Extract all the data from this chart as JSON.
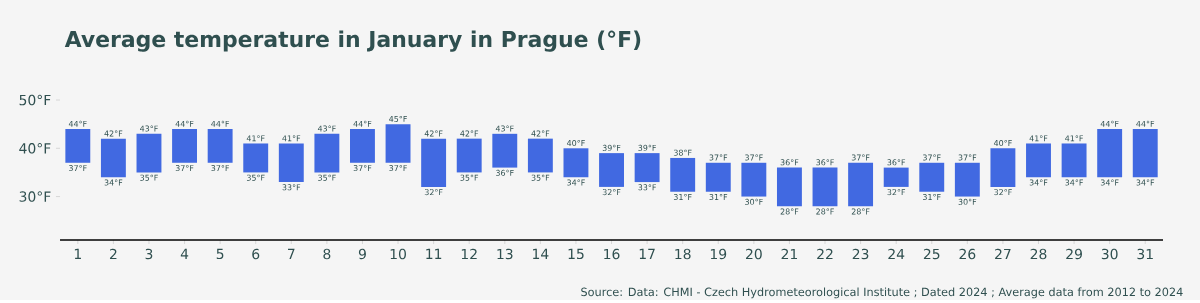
{
  "chart_data": {
    "type": "bar",
    "title": "Average temperature in January in Prague (°F)",
    "categories": [
      "1",
      "2",
      "3",
      "4",
      "5",
      "6",
      "7",
      "8",
      "9",
      "10",
      "11",
      "12",
      "13",
      "14",
      "15",
      "16",
      "17",
      "18",
      "19",
      "20",
      "21",
      "22",
      "23",
      "24",
      "25",
      "26",
      "27",
      "28",
      "29",
      "30",
      "31"
    ],
    "base": [
      37,
      34,
      35,
      37,
      37,
      35,
      33,
      35,
      37,
      37,
      32,
      35,
      36,
      35,
      34,
      32,
      33,
      31,
      31,
      30,
      28,
      28,
      28,
      32,
      31,
      30,
      32,
      34,
      34,
      34,
      34
    ],
    "values": [
      7,
      8,
      8,
      7,
      7,
      6,
      8,
      8,
      7,
      8,
      10,
      7,
      7,
      7,
      6,
      7,
      6,
      7,
      6,
      7,
      8,
      8,
      9,
      4,
      6,
      7,
      8,
      7,
      7,
      10,
      10
    ],
    "value_labels": [
      "44°F",
      "42°F",
      "43°F",
      "44°F",
      "44°F",
      "41°F",
      "41°F",
      "43°F",
      "44°F",
      "45°F",
      "42°F",
      "42°F",
      "43°F",
      "42°F",
      "40°F",
      "39°F",
      "39°F",
      "38°F",
      "37°F",
      "37°F",
      "36°F",
      "36°F",
      "37°F",
      "36°F",
      "37°F",
      "37°F",
      "40°F",
      "41°F",
      "41°F",
      "44°F",
      "44°F"
    ],
    "color": "#4169e1",
    "ylim": [
      21,
      50
    ],
    "yticks": [
      {
        "value": 30,
        "label": "30°F"
      },
      {
        "value": 40,
        "label": "40°F"
      },
      {
        "value": 50,
        "label": "50°F"
      }
    ],
    "annotations": [
      "Source: Data: CHMI - Czech Hydrometeorological Institute ; Dated 2024 ; Average data from 2012 to 2024",
      {
        "text": "37°F",
        "x": "1",
        "y": 37
      },
      {
        "text": "34°F",
        "x": "2",
        "y": 34
      },
      {
        "text": "35°F",
        "x": "3",
        "y": 35
      },
      {
        "text": "37°F",
        "x": "4",
        "y": 37
      },
      {
        "text": "37°F",
        "x": "5",
        "y": 37
      },
      {
        "text": "35°F",
        "x": "6",
        "y": 35
      },
      {
        "text": "33°F",
        "x": "7",
        "y": 33
      },
      {
        "text": "35°F",
        "x": "8",
        "y": 35
      },
      {
        "text": "37°F",
        "x": "9",
        "y": 37
      },
      {
        "text": "37°F",
        "x": "10",
        "y": 37
      },
      {
        "text": "32°F",
        "x": "11",
        "y": 32
      },
      {
        "text": "35°F",
        "x": "12",
        "y": 35
      },
      {
        "text": "36°F",
        "x": "13",
        "y": 36
      },
      {
        "text": "35°F",
        "x": "14",
        "y": 35
      },
      {
        "text": "34°F",
        "x": "15",
        "y": 34
      },
      {
        "text": "32°F",
        "x": "16",
        "y": 32
      },
      {
        "text": "33°F",
        "x": "17",
        "y": 33
      },
      {
        "text": "31°F",
        "x": "18",
        "y": 31
      },
      {
        "text": "31°F",
        "x": "19",
        "y": 31
      },
      {
        "text": "30°F",
        "x": "20",
        "y": 30
      },
      {
        "text": "28°F",
        "x": "21",
        "y": 28
      },
      {
        "text": "28°F",
        "x": "22",
        "y": 28
      },
      {
        "text": "28°F",
        "x": "23",
        "y": 28
      },
      {
        "text": "32°F",
        "x": "24",
        "y": 32
      },
      {
        "text": "31°F",
        "x": "25",
        "y": 31
      },
      {
        "text": "30°F",
        "x": "26",
        "y": 30
      },
      {
        "text": "32°F",
        "x": "27",
        "y": 32
      },
      {
        "text": "34°F",
        "x": "28",
        "y": 34
      },
      {
        "text": "34°F",
        "x": "29",
        "y": 34
      },
      {
        "text": "34°F",
        "x": "30",
        "y": 34
      },
      {
        "text": "34°F",
        "x": "31",
        "y": 34
      }
    ]
  }
}
